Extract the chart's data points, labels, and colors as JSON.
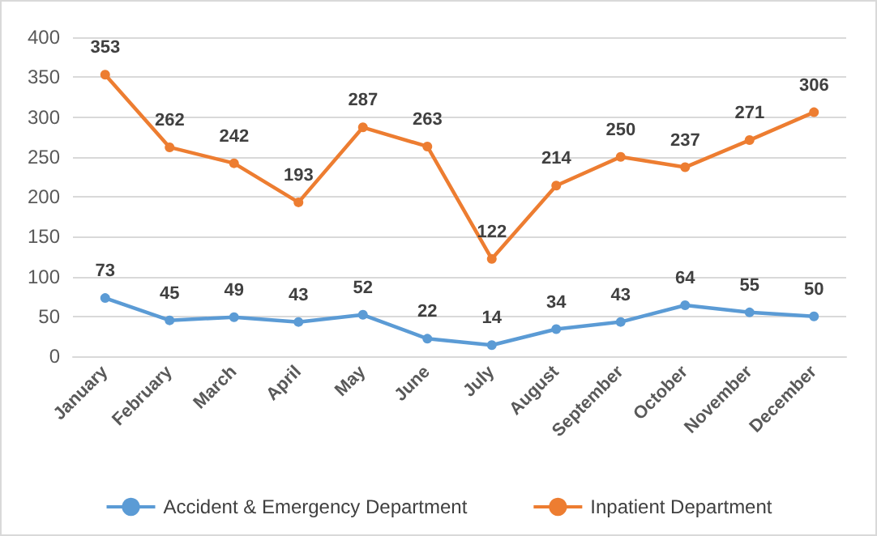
{
  "chart_data": {
    "type": "line",
    "categories": [
      "January",
      "February",
      "March",
      "April",
      "May",
      "June",
      "July",
      "August",
      "September",
      "October",
      "November",
      "December"
    ],
    "series": [
      {
        "name": "Accident & Emergency Department",
        "color": "#5b9bd5",
        "values": [
          73,
          45,
          49,
          43,
          52,
          22,
          14,
          34,
          43,
          64,
          55,
          50
        ]
      },
      {
        "name": "Inpatient Department",
        "color": "#ed7d31",
        "values": [
          353,
          262,
          242,
          193,
          287,
          263,
          122,
          214,
          250,
          237,
          271,
          306
        ]
      }
    ],
    "ylim": [
      0,
      400
    ],
    "yticks": [
      0,
      50,
      100,
      150,
      200,
      250,
      300,
      350,
      400
    ],
    "grid": "y",
    "legend": "bottom",
    "marker": "circle",
    "line_style": "solid",
    "data_labels": true
  }
}
